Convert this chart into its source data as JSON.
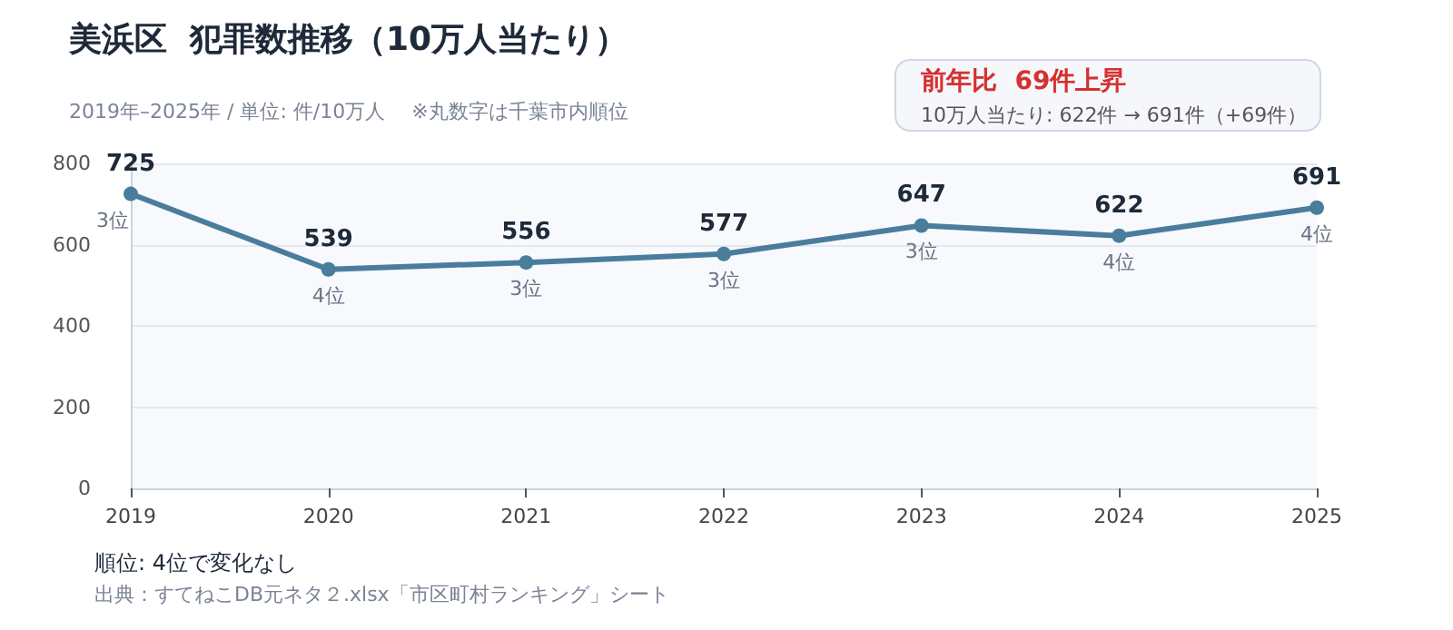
{
  "chart_data": {
    "type": "line",
    "title": "美浜区  犯罪数推移（10万人当たり）",
    "subtitle": "2019年–2025年 / 単位: 件/10万人　 ※丸数字は千葉市内順位",
    "categories": [
      "2019",
      "2020",
      "2021",
      "2022",
      "2023",
      "2024",
      "2025"
    ],
    "series": [
      {
        "color": "#4a7d9c",
        "values": [
          725,
          539,
          556,
          577,
          647,
          622,
          691
        ]
      }
    ],
    "ylim": [
      0,
      800
    ],
    "yticks": [
      0,
      200,
      400,
      600,
      800
    ],
    "grid": "y",
    "marker": "circle",
    "line_style": "solid",
    "data_labels": true,
    "annotations": [
      "前年比  69件上昇",
      "10万人当たり: 622件 → 691件（+69件）",
      "順位: 4位で変化なし",
      "出典：すてねこDB元ネタ２.xlsx「市区町村ランキング」シート",
      {
        "text": "3位",
        "x": "2019",
        "y": 725
      },
      {
        "text": "4位",
        "x": "2020",
        "y": 539
      },
      {
        "text": "3位",
        "x": "2021",
        "y": 556
      },
      {
        "text": "3位",
        "x": "2022",
        "y": 577
      },
      {
        "text": "3位",
        "x": "2023",
        "y": 647
      },
      {
        "text": "4位",
        "x": "2024",
        "y": 622
      },
      {
        "text": "4位",
        "x": "2025",
        "y": 691
      }
    ]
  }
}
